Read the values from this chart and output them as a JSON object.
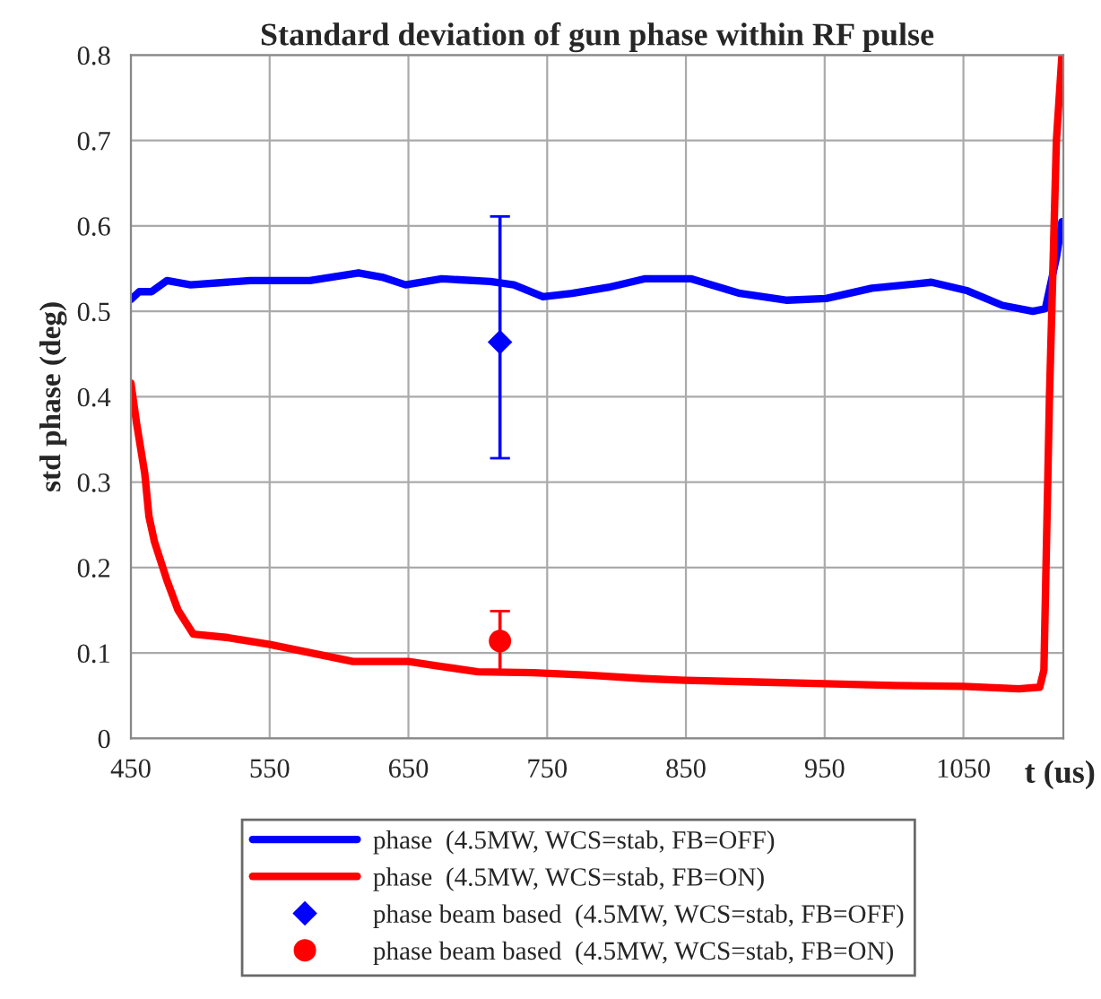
{
  "chart_data": {
    "type": "line",
    "title": "Standard deviation of gun phase within RF pulse",
    "xlabel": "t (us)",
    "ylabel": "std phase (deg)",
    "xlim": [
      450,
      1122
    ],
    "xticks": [
      450,
      550,
      650,
      750,
      850,
      950,
      1050
    ],
    "ylim": [
      0,
      0.8
    ],
    "yticks": [
      0,
      0.1,
      0.2,
      0.3,
      0.4,
      0.5,
      0.6,
      0.7,
      0.8
    ],
    "grid": true,
    "legend": "bottom",
    "series": [
      {
        "name": "phase  (4.5MW, WCS=stab, FB=OFF)",
        "color": "#0000ff",
        "x": [
          450,
          456,
          465,
          476,
          493,
          536,
          579,
          614,
          631,
          648,
          674,
          709,
          726,
          747,
          768,
          794,
          820,
          854,
          889,
          923,
          951,
          984,
          1027,
          1053,
          1078,
          1100,
          1109,
          1117,
          1121
        ],
        "values": [
          0.514,
          0.523,
          0.523,
          0.536,
          0.531,
          0.536,
          0.536,
          0.545,
          0.54,
          0.531,
          0.538,
          0.535,
          0.531,
          0.517,
          0.521,
          0.528,
          0.538,
          0.538,
          0.521,
          0.513,
          0.515,
          0.527,
          0.534,
          0.524,
          0.507,
          0.5,
          0.503,
          0.563,
          0.605
        ]
      },
      {
        "name": "phase  (4.5MW, WCS=stab, FB=ON)",
        "color": "#ff0000",
        "x": [
          450,
          454,
          460,
          463,
          467,
          476,
          484,
          495,
          520,
          550,
          580,
          610,
          650,
          670,
          700,
          740,
          780,
          820,
          850,
          900,
          950,
          1000,
          1050,
          1090,
          1105,
          1108,
          1112,
          1117,
          1121
        ],
        "values": [
          0.416,
          0.37,
          0.31,
          0.26,
          0.23,
          0.185,
          0.15,
          0.122,
          0.118,
          0.11,
          0.1,
          0.09,
          0.09,
          0.085,
          0.078,
          0.077,
          0.074,
          0.07,
          0.068,
          0.066,
          0.064,
          0.062,
          0.061,
          0.058,
          0.06,
          0.08,
          0.4,
          0.7,
          0.8
        ]
      },
      {
        "name": "phase beam based  (4.5MW, WCS=stab, FB=OFF)",
        "type": "scatter",
        "marker": "diamond",
        "color": "#0000ff",
        "x": [
          716
        ],
        "values": [
          0.464
        ],
        "errors": [
          [
            0.328,
            0.611
          ]
        ]
      },
      {
        "name": "phase beam based  (4.5MW, WCS=stab, FB=ON)",
        "type": "scatter",
        "marker": "circle",
        "color": "#ff0000",
        "x": [
          716
        ],
        "values": [
          0.114
        ],
        "errors": [
          [
            0.077,
            0.149
          ]
        ]
      }
    ]
  }
}
